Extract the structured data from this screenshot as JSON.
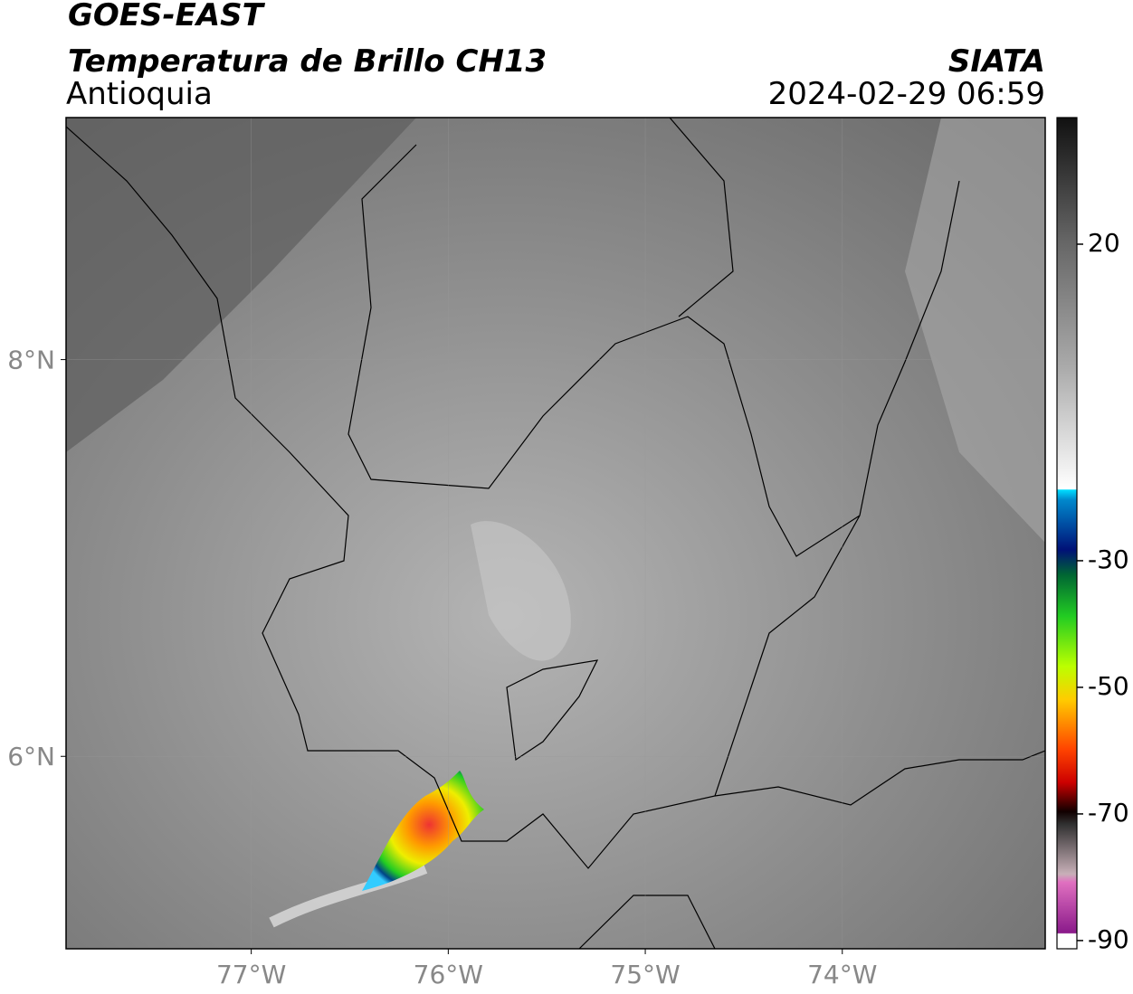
{
  "header": {
    "title": "GOES-EAST",
    "subtitle": "Temperatura de Brillo CH13",
    "region": "Antioquia",
    "source": "SIATA",
    "datetime": "2024-02-29 06:59"
  },
  "map": {
    "xlim": [
      -77.94,
      -72.97
    ],
    "ylim": [
      5.03,
      9.22
    ],
    "xticks": [
      {
        "value": -77,
        "label": "77°W"
      },
      {
        "value": -76,
        "label": "76°W"
      },
      {
        "value": -75,
        "label": "75°W"
      },
      {
        "value": -74,
        "label": "74°W"
      }
    ],
    "yticks": [
      {
        "value": 8,
        "label": "8°N"
      },
      {
        "value": 6,
        "label": "6°N"
      }
    ],
    "colorbar": {
      "lim": [
        -91.3,
        40
      ],
      "ticks": [
        20,
        -30,
        -50,
        -70,
        -90
      ]
    }
  }
}
